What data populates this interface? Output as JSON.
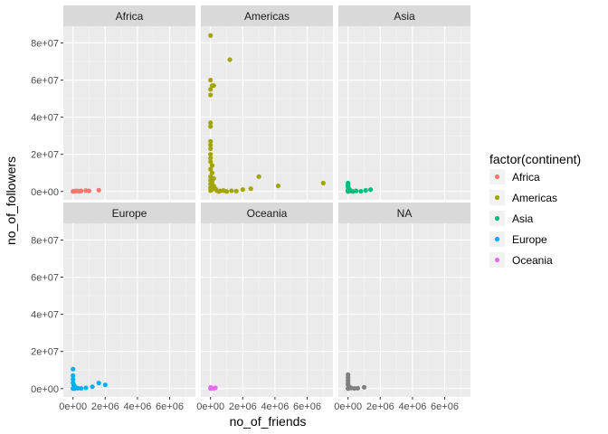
{
  "chart_data": {
    "type": "scatter",
    "title": "",
    "xlabel": "no_of_friends",
    "ylabel": "no_of_followers",
    "xlim": [
      -600000,
      7600000
    ],
    "ylim": [
      -4500000,
      89000000
    ],
    "x_ticks": [
      0,
      2000000,
      4000000,
      6000000
    ],
    "x_tick_labels": [
      "0e+00",
      "2e+06",
      "4e+06",
      "6e+06"
    ],
    "y_ticks": [
      0,
      20000000,
      40000000,
      60000000,
      80000000
    ],
    "y_tick_labels": [
      "0e+00",
      "2e+07",
      "4e+07",
      "6e+07",
      "8e+07"
    ],
    "grid": true,
    "legend": {
      "title": "factor(continent)",
      "placement": "right",
      "entries": [
        {
          "label": "Africa",
          "color": "#F8766D"
        },
        {
          "label": "Americas",
          "color": "#A3A500"
        },
        {
          "label": "Asia",
          "color": "#00BF7D"
        },
        {
          "label": "Europe",
          "color": "#00B0F6"
        },
        {
          "label": "Oceania",
          "color": "#E76BF3"
        }
      ]
    },
    "facets": [
      {
        "label": "Africa",
        "color": "#F8766D",
        "points": [
          [
            0,
            0
          ],
          [
            50000,
            200000
          ],
          [
            100000,
            100000
          ],
          [
            200000,
            300000
          ],
          [
            300000,
            200000
          ],
          [
            400000,
            100000
          ],
          [
            500000,
            300000
          ],
          [
            800000,
            500000
          ],
          [
            1000000,
            300000
          ],
          [
            1600000,
            700000
          ]
        ]
      },
      {
        "label": "Americas",
        "color": "#A3A500",
        "points": [
          [
            0,
            84000000
          ],
          [
            0,
            60000000
          ],
          [
            100000,
            57000000
          ],
          [
            200000,
            57000000
          ],
          [
            0,
            55000000
          ],
          [
            0,
            52000000
          ],
          [
            1200000,
            71000000
          ],
          [
            0,
            37000000
          ],
          [
            0,
            35000000
          ],
          [
            0,
            27000000
          ],
          [
            0,
            25000000
          ],
          [
            0,
            23000000
          ],
          [
            0,
            20000000
          ],
          [
            0,
            18000000
          ],
          [
            0,
            16000000
          ],
          [
            100000,
            14000000
          ],
          [
            0,
            12000000
          ],
          [
            100000,
            10000000
          ],
          [
            0,
            8000000
          ],
          [
            200000,
            7000000
          ],
          [
            0,
            6000000
          ],
          [
            100000,
            5000000
          ],
          [
            0,
            4000000
          ],
          [
            200000,
            3000000
          ],
          [
            0,
            2000000
          ],
          [
            300000,
            1500000
          ],
          [
            100000,
            1000000
          ],
          [
            400000,
            500000
          ],
          [
            600000,
            300000
          ],
          [
            800000,
            500000
          ],
          [
            1000000,
            0
          ],
          [
            1300000,
            400000
          ],
          [
            1600000,
            200000
          ],
          [
            2000000,
            1000000
          ],
          [
            2500000,
            1500000
          ],
          [
            3000000,
            8000000
          ],
          [
            4200000,
            3000000
          ],
          [
            7000000,
            4500000
          ],
          [
            500000,
            0
          ],
          [
            0,
            500000
          ]
        ]
      },
      {
        "label": "Asia",
        "color": "#00BF7D",
        "points": [
          [
            0,
            4500000
          ],
          [
            0,
            3500000
          ],
          [
            0,
            2500000
          ],
          [
            50000,
            1500000
          ],
          [
            0,
            800000
          ],
          [
            100000,
            400000
          ],
          [
            200000,
            200000
          ],
          [
            300000,
            0
          ],
          [
            500000,
            300000
          ],
          [
            800000,
            100000
          ],
          [
            1100000,
            600000
          ],
          [
            1400000,
            1000000
          ],
          [
            100000,
            1000000
          ],
          [
            0,
            0
          ]
        ]
      },
      {
        "label": "Europe",
        "color": "#00B0F6",
        "points": [
          [
            0,
            10500000
          ],
          [
            0,
            7000000
          ],
          [
            0,
            5000000
          ],
          [
            0,
            3000000
          ],
          [
            50000,
            2000000
          ],
          [
            100000,
            1000000
          ],
          [
            200000,
            500000
          ],
          [
            300000,
            200000
          ],
          [
            500000,
            100000
          ],
          [
            800000,
            400000
          ],
          [
            1200000,
            1000000
          ],
          [
            1600000,
            3000000
          ],
          [
            2000000,
            2000000
          ],
          [
            100000,
            0
          ],
          [
            0,
            0
          ]
        ]
      },
      {
        "label": "Oceania",
        "color": "#E76BF3",
        "points": [
          [
            0,
            600000
          ],
          [
            50000,
            300000
          ],
          [
            100000,
            200000
          ],
          [
            200000,
            100000
          ],
          [
            300000,
            400000
          ],
          [
            0,
            0
          ]
        ]
      },
      {
        "label": "NA",
        "color": "#7F7F7F",
        "points": [
          [
            0,
            7500000
          ],
          [
            0,
            6000000
          ],
          [
            0,
            4500000
          ],
          [
            0,
            3000000
          ],
          [
            0,
            2000000
          ],
          [
            50000,
            1200000
          ],
          [
            100000,
            600000
          ],
          [
            200000,
            300000
          ],
          [
            400000,
            100000
          ],
          [
            600000,
            200000
          ],
          [
            1000000,
            700000
          ],
          [
            0,
            0
          ]
        ]
      }
    ]
  }
}
